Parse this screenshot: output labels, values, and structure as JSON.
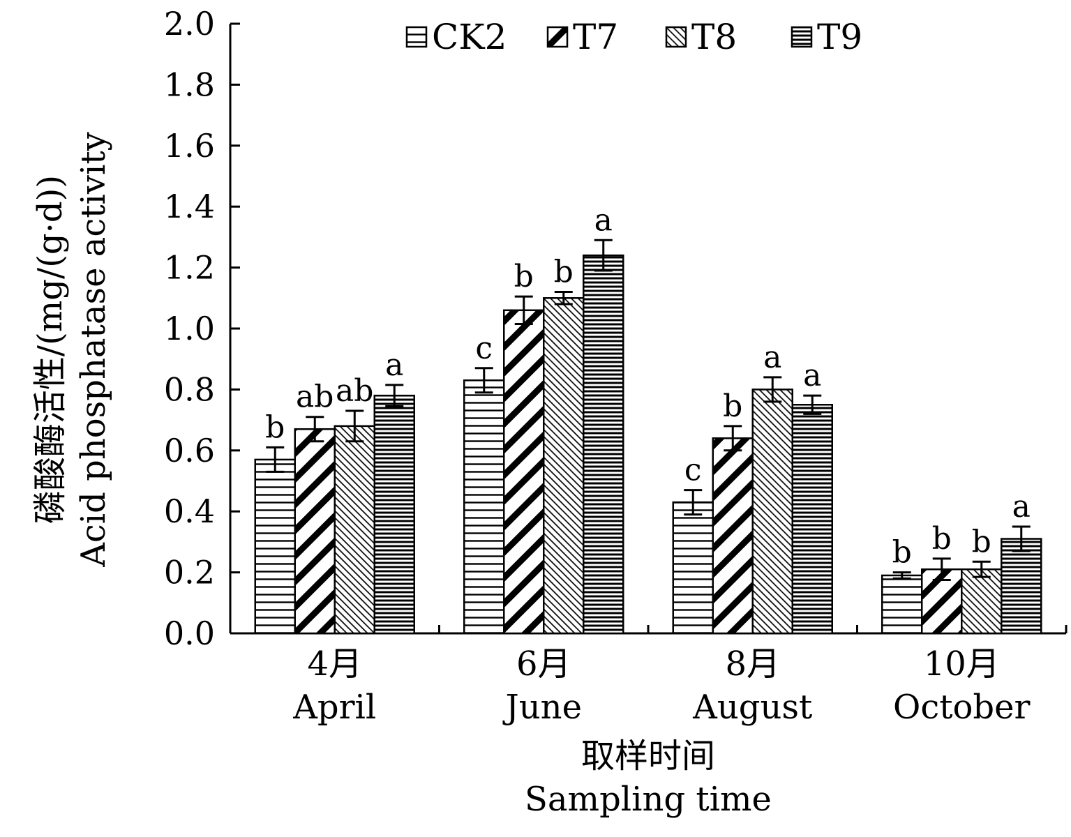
{
  "chart_data": {
    "type": "bar",
    "title": "",
    "xlabel": [
      "取样时间",
      "Sampling time"
    ],
    "ylabel": [
      "磷酸酶活性/(mg/(g·d))",
      "Acid phosphatase activity"
    ],
    "ylim": [
      0,
      2.0
    ],
    "yticks": [
      "0.0",
      "0.2",
      "0.4",
      "0.6",
      "0.8",
      "1.0",
      "1.2",
      "1.4",
      "1.6",
      "1.8",
      "2.0"
    ],
    "categories": [
      [
        "4月",
        "April"
      ],
      [
        "6月",
        "June"
      ],
      [
        "8月",
        "August"
      ],
      [
        "10月",
        "October"
      ]
    ],
    "legend_position": "top",
    "grid": false,
    "series": [
      {
        "name": "CK2",
        "pattern": "horizontal-lines",
        "values": [
          0.57,
          0.83,
          0.43,
          0.19
        ],
        "errors": [
          0.04,
          0.04,
          0.04,
          0.01
        ],
        "letters": [
          "b",
          "c",
          "c",
          "b"
        ]
      },
      {
        "name": "T7",
        "pattern": "bold-diagonal",
        "values": [
          0.67,
          1.06,
          0.64,
          0.21
        ],
        "errors": [
          0.04,
          0.045,
          0.04,
          0.035
        ],
        "letters": [
          "ab",
          "b",
          "b",
          "b"
        ]
      },
      {
        "name": "T8",
        "pattern": "fine-diagonal",
        "values": [
          0.68,
          1.1,
          0.8,
          0.21
        ],
        "errors": [
          0.05,
          0.02,
          0.04,
          0.025
        ],
        "letters": [
          "ab",
          "b",
          "a",
          "b"
        ]
      },
      {
        "name": "T9",
        "pattern": "dense-horizontal",
        "values": [
          0.78,
          1.24,
          0.75,
          0.31
        ],
        "errors": [
          0.035,
          0.05,
          0.03,
          0.04
        ],
        "letters": [
          "a",
          "a",
          "a",
          "a"
        ]
      }
    ]
  }
}
